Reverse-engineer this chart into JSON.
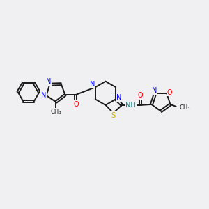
{
  "bg_color": "#f0f0f2",
  "bond_color": "#1a1a1a",
  "colors": {
    "N": "#0000ff",
    "O": "#ff0000",
    "S": "#ccaa00",
    "C": "#1a1a1a",
    "NH": "#008080"
  },
  "font_size": 7.0,
  "lw": 1.4
}
